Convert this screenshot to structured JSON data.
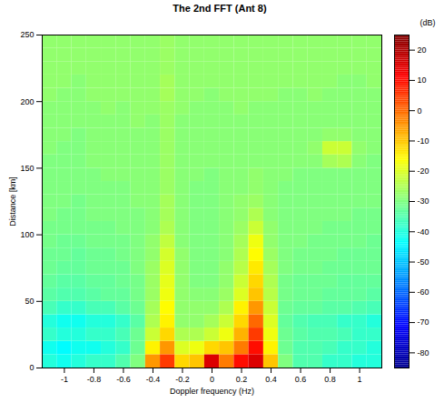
{
  "chart_data": {
    "type": "heatmap",
    "title": "The 2nd FFT (Ant 8)",
    "x_label": "Doppler frequency (Hz)",
    "y_label": "Distance [km]",
    "xlim": [
      -1.15,
      1.15
    ],
    "ylim": [
      0,
      250
    ],
    "xticks": [
      -1,
      -0.8,
      -0.6,
      -0.4,
      -0.2,
      0,
      0.2,
      0.4,
      0.6,
      0.8,
      1
    ],
    "yticks": [
      0,
      50,
      100,
      150,
      200,
      250
    ],
    "x_bins": [
      -1.15,
      -1.05,
      -0.95,
      -0.85,
      -0.75,
      -0.65,
      -0.55,
      -0.45,
      -0.35,
      -0.25,
      -0.15,
      -0.05,
      0.05,
      0.15,
      0.25,
      0.35,
      0.45,
      0.55,
      0.65,
      0.75,
      0.85,
      0.95,
      1.05,
      1.15
    ],
    "y_bins": [
      0,
      10,
      20,
      30,
      40,
      50,
      60,
      70,
      80,
      90,
      100,
      110,
      120,
      130,
      140,
      150,
      160,
      170,
      180,
      190,
      200,
      210,
      220,
      230,
      240,
      250
    ],
    "cells": [
      [
        -40,
        -42,
        -40,
        -38,
        -38,
        -35,
        -30,
        -5,
        5,
        -12,
        -10,
        15,
        -2,
        10,
        15,
        -10,
        -30,
        -35,
        -35,
        -38,
        -38,
        -40,
        -40
      ],
      [
        -42,
        -44,
        -42,
        -42,
        -40,
        -38,
        -32,
        -15,
        -5,
        -20,
        -18,
        -12,
        -10,
        -2,
        10,
        -15,
        -32,
        -35,
        -35,
        -36,
        -38,
        -38,
        -40
      ],
      [
        -38,
        -40,
        -40,
        -38,
        -38,
        -36,
        -32,
        -22,
        -12,
        -25,
        -25,
        -22,
        -18,
        -8,
        5,
        -18,
        -32,
        -34,
        -35,
        -35,
        -36,
        -38,
        -38
      ],
      [
        -40,
        -42,
        -42,
        -40,
        -40,
        -38,
        -34,
        -25,
        -15,
        -28,
        -28,
        -26,
        -22,
        -12,
        0,
        -20,
        -33,
        -35,
        -36,
        -36,
        -38,
        -38,
        -40
      ],
      [
        -36,
        -38,
        -38,
        -36,
        -36,
        -34,
        -32,
        -26,
        -16,
        -28,
        -28,
        -28,
        -25,
        -15,
        -5,
        -22,
        -32,
        -33,
        -33,
        -34,
        -34,
        -35,
        -36
      ],
      [
        -34,
        -35,
        -35,
        -34,
        -33,
        -33,
        -31,
        -27,
        -18,
        -28,
        -29,
        -29,
        -27,
        -20,
        -10,
        -24,
        -31,
        -32,
        -32,
        -33,
        -33,
        -33,
        -34
      ],
      [
        -33,
        -34,
        -34,
        -33,
        -33,
        -32,
        -31,
        -27,
        -19,
        -28,
        -30,
        -30,
        -28,
        -22,
        -12,
        -25,
        -31,
        -32,
        -32,
        -32,
        -33,
        -33,
        -33
      ],
      [
        -32,
        -33,
        -33,
        -32,
        -32,
        -32,
        -30,
        -27,
        -20,
        -28,
        -30,
        -30,
        -28,
        -24,
        -14,
        -26,
        -30,
        -31,
        -31,
        -32,
        -32,
        -32,
        -32
      ],
      [
        -32,
        -32,
        -33,
        -32,
        -32,
        -31,
        -30,
        -28,
        -21,
        -28,
        -30,
        -30,
        -29,
        -25,
        -16,
        -27,
        -30,
        -31,
        -31,
        -31,
        -32,
        -32,
        -32
      ],
      [
        -31,
        -32,
        -32,
        -31,
        -31,
        -31,
        -30,
        -28,
        -23,
        -29,
        -30,
        -30,
        -29,
        -26,
        -18,
        -28,
        -30,
        -30,
        -31,
        -31,
        -31,
        -31,
        -32
      ],
      [
        -31,
        -31,
        -31,
        -31,
        -31,
        -30,
        -30,
        -29,
        -25,
        -29,
        -30,
        -30,
        -29,
        -27,
        -22,
        -28,
        -30,
        -30,
        -30,
        -31,
        -31,
        -31,
        -31
      ],
      [
        -30,
        -31,
        -31,
        -30,
        -30,
        -30,
        -30,
        -29,
        -26,
        -29,
        -30,
        -30,
        -29,
        -28,
        -25,
        -29,
        -30,
        -30,
        -30,
        -30,
        -30,
        -31,
        -31
      ],
      [
        -30,
        -30,
        -31,
        -30,
        -30,
        -30,
        -29,
        -29,
        -26,
        -29,
        -30,
        -30,
        -29,
        -28,
        -27,
        -29,
        -30,
        -30,
        -30,
        -30,
        -30,
        -30,
        -30
      ],
      [
        -30,
        -30,
        -30,
        -30,
        -30,
        -30,
        -29,
        -29,
        -27,
        -29,
        -30,
        -30,
        -29,
        -29,
        -28,
        -29,
        -30,
        -30,
        -30,
        -30,
        -30,
        -30,
        -30
      ],
      [
        -30,
        -30,
        -30,
        -30,
        -29,
        -29,
        -29,
        -29,
        -27,
        -29,
        -29,
        -30,
        -29,
        -29,
        -28,
        -29,
        -29,
        -30,
        -30,
        -30,
        -30,
        -30,
        -30
      ],
      [
        -30,
        -30,
        -30,
        -29,
        -29,
        -29,
        -29,
        -29,
        -27,
        -29,
        -29,
        -29,
        -29,
        -29,
        -29,
        -29,
        -29,
        -29,
        -29,
        -26,
        -25,
        -29,
        -30
      ],
      [
        -29,
        -30,
        -30,
        -29,
        -29,
        -29,
        -29,
        -29,
        -27,
        -29,
        -29,
        -29,
        -29,
        -29,
        -29,
        -29,
        -29,
        -29,
        -28,
        -22,
        -22,
        -28,
        -29
      ],
      [
        -29,
        -29,
        -30,
        -29,
        -29,
        -29,
        -29,
        -29,
        -27,
        -29,
        -29,
        -29,
        -29,
        -29,
        -29,
        -29,
        -29,
        -29,
        -29,
        -28,
        -28,
        -29,
        -29
      ],
      [
        -29,
        -29,
        -29,
        -29,
        -29,
        -29,
        -28,
        -29,
        -27,
        -29,
        -29,
        -29,
        -29,
        -29,
        -29,
        -29,
        -29,
        -29,
        -29,
        -29,
        -29,
        -29,
        -29
      ],
      [
        -29,
        -29,
        -29,
        -29,
        -28,
        -29,
        -28,
        -28,
        -27,
        -28,
        -29,
        -29,
        -29,
        -28,
        -29,
        -29,
        -29,
        -29,
        -29,
        -29,
        -29,
        -29,
        -29
      ],
      [
        -28,
        -29,
        -29,
        -28,
        -28,
        -28,
        -28,
        -28,
        -26,
        -28,
        -28,
        -29,
        -28,
        -28,
        -28,
        -28,
        -29,
        -29,
        -28,
        -29,
        -29,
        -29,
        -29
      ],
      [
        -28,
        -28,
        -29,
        -28,
        -28,
        -28,
        -28,
        -28,
        -26,
        -28,
        -28,
        -28,
        -28,
        -28,
        -28,
        -28,
        -28,
        -28,
        -28,
        -28,
        -29,
        -29,
        -28
      ],
      [
        -28,
        -28,
        -28,
        -28,
        -28,
        -28,
        -28,
        -28,
        -27,
        -28,
        -28,
        -28,
        -28,
        -28,
        -28,
        -28,
        -28,
        -28,
        -28,
        -28,
        -28,
        -28,
        -28
      ],
      [
        -28,
        -28,
        -28,
        -28,
        -28,
        -28,
        -28,
        -28,
        -27,
        -28,
        -28,
        -28,
        -28,
        -28,
        -28,
        -28,
        -28,
        -28,
        -28,
        -28,
        -28,
        -28,
        -28
      ],
      [
        -28,
        -28,
        -28,
        -28,
        -28,
        -28,
        -28,
        -28,
        -27,
        -28,
        -28,
        -28,
        -28,
        -28,
        -28,
        -28,
        -28,
        -28,
        -28,
        -28,
        -28,
        -28,
        -28
      ]
    ],
    "colorbar_label": "(dB)",
    "colorbar_lim": [
      -85,
      25
    ],
    "colorbar_ticks": [
      20,
      10,
      0,
      -10,
      -20,
      -30,
      -40,
      -50,
      -60,
      -70,
      -80
    ],
    "color": "jet"
  }
}
